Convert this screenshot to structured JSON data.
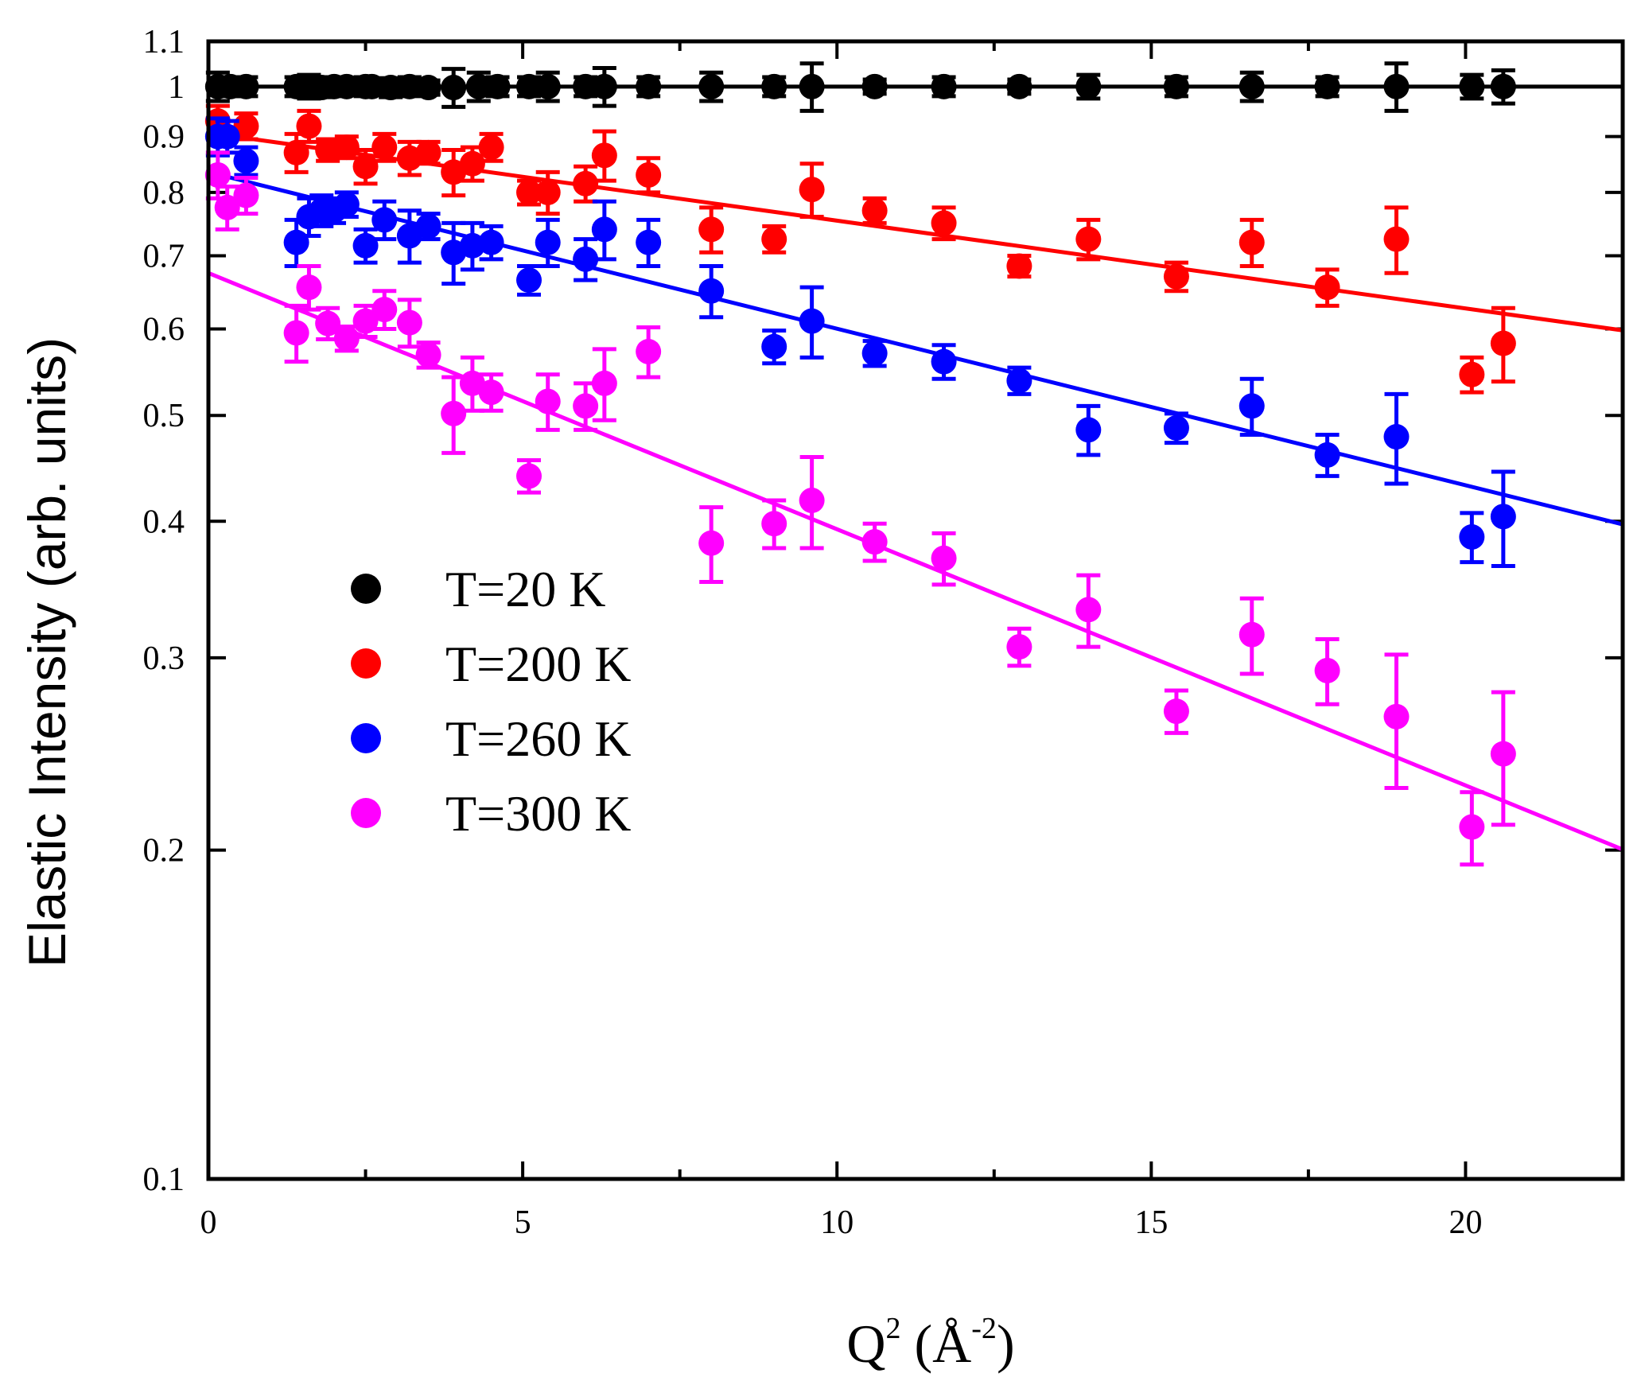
{
  "chart_data": {
    "type": "scatter",
    "title": "",
    "xlabel": {
      "base": "Q",
      "sup1": "2",
      "mid": " (Å",
      "sup2": "-2",
      "end": ")"
    },
    "ylabel": "Elastic Intensity (arb. units)",
    "xscale": "linear",
    "yscale": "log",
    "xlim": [
      0,
      22.5
    ],
    "ylim": [
      0.1,
      1.1
    ],
    "xticks": [
      0,
      5,
      10,
      15,
      20
    ],
    "xtick_labels": [
      "0",
      "5",
      "10",
      "15",
      "20"
    ],
    "yticks": [
      0.1,
      0.2,
      0.3,
      0.4,
      0.5,
      0.6,
      0.7,
      0.8,
      0.9,
      1,
      1.1
    ],
    "ytick_labels": [
      "0.1",
      "0.2",
      "0.3",
      "0.4",
      "0.5",
      "0.6",
      "0.7",
      "0.8",
      "0.9",
      "1",
      "1.1"
    ],
    "legend_position": "center-left",
    "series": [
      {
        "name": "T=20 K",
        "color": "#000000",
        "fit": {
          "a": 1.0,
          "b": 0.0
        },
        "points": [
          [
            0.15,
            1.0,
            0.03
          ],
          [
            0.35,
            1.0,
            0.02
          ],
          [
            0.6,
            1.0,
            0.02
          ],
          [
            1.4,
            1.0,
            0.02
          ],
          [
            1.6,
            1.0,
            0.025
          ],
          [
            1.8,
            0.998,
            0.02
          ],
          [
            2.0,
            1.0,
            0.02
          ],
          [
            2.2,
            1.0,
            0.015
          ],
          [
            2.5,
            1.0,
            0.02
          ],
          [
            2.6,
            1.0,
            0.015
          ],
          [
            2.9,
            0.998,
            0.02
          ],
          [
            3.2,
            1.0,
            0.02
          ],
          [
            3.5,
            0.998,
            0.015
          ],
          [
            3.9,
            0.998,
            0.04
          ],
          [
            4.3,
            1.0,
            0.03
          ],
          [
            4.6,
            1.0,
            0.02
          ],
          [
            5.1,
            1.0,
            0.02
          ],
          [
            5.4,
            1.0,
            0.03
          ],
          [
            6.0,
            1.0,
            0.02
          ],
          [
            6.3,
            1.0,
            0.04
          ],
          [
            7.0,
            1.0,
            0.02
          ],
          [
            8.0,
            1.0,
            0.03
          ],
          [
            9.0,
            1.0,
            0.02
          ],
          [
            9.6,
            1.0,
            0.05
          ],
          [
            10.6,
            1.0,
            0.015
          ],
          [
            11.7,
            1.0,
            0.02
          ],
          [
            12.9,
            1.0,
            0.015
          ],
          [
            14.0,
            1.0,
            0.025
          ],
          [
            15.4,
            1.0,
            0.02
          ],
          [
            16.6,
            1.0,
            0.03
          ],
          [
            17.8,
            1.0,
            0.02
          ],
          [
            18.9,
            1.0,
            0.05
          ],
          [
            20.1,
            1.0,
            0.025
          ],
          [
            20.6,
            1.0,
            0.035
          ]
        ]
      },
      {
        "name": "T=200 K",
        "color": "#ff0000",
        "fit": {
          "a": 0.907,
          "b": 0.0185
        },
        "points": [
          [
            0.15,
            0.93,
            0.03
          ],
          [
            0.6,
            0.92,
            0.025
          ],
          [
            1.4,
            0.87,
            0.035
          ],
          [
            1.6,
            0.92,
            0.03
          ],
          [
            1.9,
            0.875,
            0.02
          ],
          [
            2.2,
            0.88,
            0.02
          ],
          [
            2.5,
            0.845,
            0.03
          ],
          [
            2.8,
            0.88,
            0.025
          ],
          [
            3.2,
            0.86,
            0.03
          ],
          [
            3.5,
            0.87,
            0.02
          ],
          [
            3.9,
            0.835,
            0.04
          ],
          [
            4.2,
            0.85,
            0.03
          ],
          [
            4.5,
            0.88,
            0.025
          ],
          [
            5.1,
            0.8,
            0.02
          ],
          [
            5.4,
            0.8,
            0.035
          ],
          [
            6.0,
            0.815,
            0.03
          ],
          [
            6.3,
            0.865,
            0.045
          ],
          [
            7.0,
            0.83,
            0.03
          ],
          [
            8.0,
            0.74,
            0.035
          ],
          [
            9.0,
            0.725,
            0.02
          ],
          [
            9.6,
            0.805,
            0.045
          ],
          [
            10.6,
            0.77,
            0.02
          ],
          [
            11.7,
            0.75,
            0.025
          ],
          [
            12.9,
            0.685,
            0.015
          ],
          [
            14.0,
            0.725,
            0.03
          ],
          [
            15.4,
            0.67,
            0.02
          ],
          [
            16.6,
            0.72,
            0.035
          ],
          [
            17.8,
            0.655,
            0.025
          ],
          [
            18.9,
            0.725,
            0.05
          ],
          [
            20.1,
            0.545,
            0.02
          ],
          [
            20.6,
            0.582,
            0.045
          ]
        ]
      },
      {
        "name": "T=260 K",
        "color": "#0000ff",
        "fit": {
          "a": 0.835,
          "b": 0.033
        },
        "points": [
          [
            0.15,
            0.9,
            0.035
          ],
          [
            0.3,
            0.9,
            0.03
          ],
          [
            0.6,
            0.855,
            0.025
          ],
          [
            1.4,
            0.72,
            0.035
          ],
          [
            1.6,
            0.76,
            0.03
          ],
          [
            1.8,
            0.77,
            0.025
          ],
          [
            2.0,
            0.77,
            0.02
          ],
          [
            2.2,
            0.78,
            0.02
          ],
          [
            2.5,
            0.715,
            0.025
          ],
          [
            2.8,
            0.755,
            0.03
          ],
          [
            3.2,
            0.73,
            0.04
          ],
          [
            3.5,
            0.745,
            0.02
          ],
          [
            3.9,
            0.705,
            0.045
          ],
          [
            4.2,
            0.715,
            0.035
          ],
          [
            4.5,
            0.72,
            0.025
          ],
          [
            5.1,
            0.665,
            0.02
          ],
          [
            5.4,
            0.72,
            0.035
          ],
          [
            6.0,
            0.695,
            0.03
          ],
          [
            6.3,
            0.74,
            0.045
          ],
          [
            7.0,
            0.72,
            0.035
          ],
          [
            8.0,
            0.65,
            0.035
          ],
          [
            9.0,
            0.578,
            0.02
          ],
          [
            9.6,
            0.61,
            0.045
          ],
          [
            10.6,
            0.57,
            0.015
          ],
          [
            11.7,
            0.56,
            0.02
          ],
          [
            12.9,
            0.538,
            0.015
          ],
          [
            14.0,
            0.485,
            0.025
          ],
          [
            15.4,
            0.487,
            0.015
          ],
          [
            16.6,
            0.51,
            0.03
          ],
          [
            17.8,
            0.46,
            0.02
          ],
          [
            18.9,
            0.478,
            0.045
          ],
          [
            20.1,
            0.387,
            0.02
          ],
          [
            20.6,
            0.404,
            0.04
          ]
        ]
      },
      {
        "name": "T=300 K",
        "color": "#ff00ff",
        "fit": {
          "a": 0.675,
          "b": 0.054
        },
        "points": [
          [
            0.15,
            0.83,
            0.04
          ],
          [
            0.3,
            0.775,
            0.035
          ],
          [
            0.6,
            0.795,
            0.03
          ],
          [
            1.4,
            0.595,
            0.035
          ],
          [
            1.6,
            0.655,
            0.03
          ],
          [
            1.9,
            0.607,
            0.02
          ],
          [
            2.2,
            0.588,
            0.015
          ],
          [
            2.5,
            0.61,
            0.02
          ],
          [
            2.8,
            0.625,
            0.025
          ],
          [
            3.2,
            0.608,
            0.03
          ],
          [
            3.5,
            0.568,
            0.015
          ],
          [
            3.9,
            0.502,
            0.04
          ],
          [
            4.2,
            0.535,
            0.03
          ],
          [
            4.5,
            0.525,
            0.02
          ],
          [
            5.1,
            0.44,
            0.015
          ],
          [
            5.4,
            0.515,
            0.03
          ],
          [
            6.0,
            0.51,
            0.025
          ],
          [
            6.3,
            0.535,
            0.04
          ],
          [
            7.0,
            0.572,
            0.03
          ],
          [
            8.0,
            0.382,
            0.03
          ],
          [
            9.0,
            0.398,
            0.02
          ],
          [
            9.6,
            0.418,
            0.04
          ],
          [
            10.6,
            0.383,
            0.015
          ],
          [
            11.7,
            0.37,
            0.02
          ],
          [
            12.9,
            0.307,
            0.012
          ],
          [
            14.0,
            0.332,
            0.025
          ],
          [
            15.4,
            0.268,
            0.012
          ],
          [
            16.6,
            0.315,
            0.025
          ],
          [
            17.8,
            0.292,
            0.02
          ],
          [
            18.9,
            0.265,
            0.037
          ],
          [
            20.1,
            0.21,
            0.016
          ],
          [
            20.6,
            0.245,
            0.034
          ]
        ]
      }
    ]
  }
}
